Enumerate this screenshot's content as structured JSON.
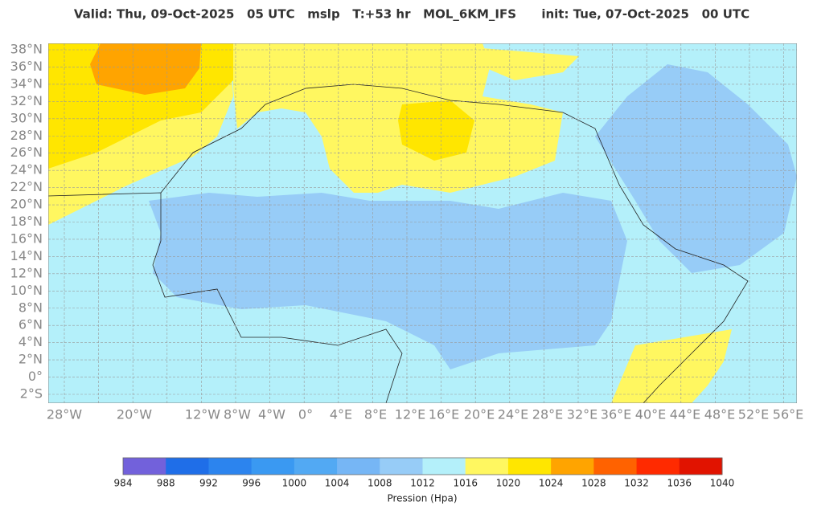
{
  "header": {
    "title": "Valid: Thu, 09-Oct-2025   05 UTC   mslp   T:+53 hr   MOL_6KM_IFS      init: Tue, 07-Oct-2025   00 UTC"
  },
  "map": {
    "lat_labels": [
      "38°N",
      "36°N",
      "34°N",
      "32°N",
      "30°N",
      "28°N",
      "26°N",
      "24°N",
      "22°N",
      "20°N",
      "18°N",
      "16°N",
      "14°N",
      "12°N",
      "10°N",
      "8°N",
      "6°N",
      "4°N",
      "2°N",
      "0°",
      "2°S"
    ],
    "lon_labels": [
      "28°W",
      "20°W",
      "12°W",
      "8°W",
      "4°W",
      "0°",
      "4°E",
      "8°E",
      "12°E",
      "16°E",
      "20°E",
      "24°E",
      "28°E",
      "32°E",
      "36°E",
      "40°E",
      "44°E",
      "48°E",
      "52°E",
      "56°E"
    ]
  },
  "colorbar": {
    "ticks": [
      984,
      988,
      992,
      996,
      1000,
      1004,
      1008,
      1012,
      1016,
      1020,
      1024,
      1028,
      1032,
      1036,
      1040
    ],
    "colors": [
      "#7261db",
      "#1f6ee8",
      "#2c84ee",
      "#3a99f2",
      "#52a9f3",
      "#76b6f5",
      "#97ccf7",
      "#b4f0fa",
      "#fff760",
      "#ffe600",
      "#ffa400",
      "#ff6200",
      "#ff2a00",
      "#e11300"
    ],
    "label": "Pression (Hpa)"
  }
}
